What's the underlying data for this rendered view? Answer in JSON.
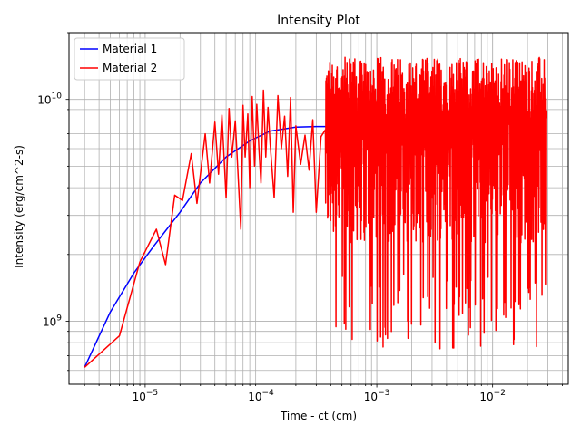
{
  "chart_data": {
    "type": "line",
    "title": "Intensity Plot",
    "xlabel": "Time - ct (cm)",
    "ylabel": "Intensity (erg/cm^2-s)",
    "xscale": "log",
    "yscale": "log",
    "xlim": [
      2.2e-06,
      0.045
    ],
    "ylim": [
      520000000.0,
      20000000000.0
    ],
    "xticks": [
      {
        "value": 1e-05,
        "base": "10",
        "exp": "−5"
      },
      {
        "value": 0.0001,
        "base": "10",
        "exp": "−4"
      },
      {
        "value": 0.001,
        "base": "10",
        "exp": "−3"
      },
      {
        "value": 0.01,
        "base": "10",
        "exp": "−2"
      }
    ],
    "yticks": [
      {
        "value": 1000000000.0,
        "base": "10",
        "exp": "9"
      },
      {
        "value": 10000000000.0,
        "base": "10",
        "exp": "10"
      }
    ],
    "grid": true,
    "legend_position": "top-left",
    "series": [
      {
        "name": "Material 1",
        "color": "#0000ff",
        "x": [
          3e-06,
          5e-06,
          8e-06,
          1.2e-05,
          2e-05,
          3e-05,
          5e-05,
          8e-05,
          0.00012,
          0.0002,
          0.0003,
          0.0004
        ],
        "y": [
          620000000.0,
          1100000000.0,
          1650000000.0,
          2200000000.0,
          3100000000.0,
          4200000000.0,
          5500000000.0,
          6500000000.0,
          7200000000.0,
          7500000000.0,
          7550000000.0,
          7550000000.0
        ]
      },
      {
        "name": "Material 2",
        "color": "#ff0000",
        "noise": {
          "x_start": 0.00036,
          "x_end": 0.029,
          "y_min": 750000000.0,
          "y_max": 15500000000.0
        },
        "x": [
          3e-06,
          6e-06,
          9e-06,
          1.25e-05,
          1.5e-05,
          1.8e-05,
          2.1e-05,
          2.5e-05,
          2.8e-05,
          3.3e-05,
          3.6e-05,
          4e-05,
          4.3e-05,
          4.6e-05,
          5e-05,
          5.3e-05,
          5.6e-05,
          6e-05,
          6.3e-05,
          6.7e-05,
          7e-05,
          7.3e-05,
          7.7e-05,
          8e-05,
          8.4e-05,
          8.8e-05,
          9.2e-05,
          9.6e-05,
          0.0001,
          0.000105,
          0.00011,
          0.000115,
          0.00012,
          0.00013,
          0.00014,
          0.00015,
          0.00016,
          0.00017,
          0.00018,
          0.00019,
          0.0002,
          0.00022,
          0.00024,
          0.00026,
          0.00028,
          0.0003,
          0.00033,
          0.00036
        ],
        "y": [
          620000000.0,
          860000000.0,
          1850000000.0,
          2600000000.0,
          1800000000.0,
          3700000000.0,
          3500000000.0,
          5700000000.0,
          3400000000.0,
          7000000000.0,
          4200000000.0,
          7900000000.0,
          4600000000.0,
          8500000000.0,
          3600000000.0,
          9100000000.0,
          5500000000.0,
          8000000000.0,
          4900000000.0,
          2600000000.0,
          9400000000.0,
          5500000000.0,
          8600000000.0,
          4000000000.0,
          10300000000.0,
          5000000000.0,
          9500000000.0,
          6000000000.0,
          4200000000.0,
          11000000000.0,
          5500000000.0,
          9200000000.0,
          6300000000.0,
          3600000000.0,
          10400000000.0,
          6000000000.0,
          8400000000.0,
          4500000000.0,
          10200000000.0,
          3100000000.0,
          7600000000.0,
          5100000000.0,
          6900000000.0,
          4800000000.0,
          8100000000.0,
          3100000000.0,
          6800000000.0,
          7300000000.0
        ]
      }
    ]
  }
}
